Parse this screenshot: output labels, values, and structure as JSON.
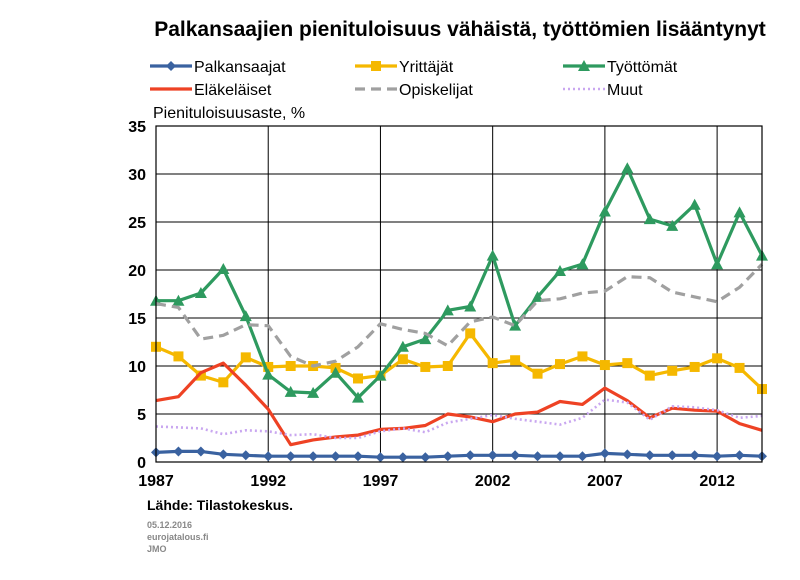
{
  "chart_data": {
    "type": "line",
    "title": "Palkansaajien pienituloisuus vähäistä, työttömien lisääntynyt",
    "ylabel": "Pienituloisuusaste, %",
    "xlabel": "",
    "xlim": [
      1987,
      2014
    ],
    "ylim": [
      0,
      35
    ],
    "yticks": [
      "0",
      "5",
      "10",
      "15",
      "20",
      "25",
      "30",
      "35"
    ],
    "xticks": [
      "1987",
      "1992",
      "1997",
      "2002",
      "2007",
      "2012"
    ],
    "x": [
      1987,
      1988,
      1989,
      1990,
      1991,
      1992,
      1993,
      1994,
      1995,
      1996,
      1997,
      1998,
      1999,
      2000,
      2001,
      2002,
      2003,
      2004,
      2005,
      2006,
      2007,
      2008,
      2009,
      2010,
      2011,
      2012,
      2013,
      2014
    ],
    "grid": true,
    "legend_position": "top",
    "series": [
      {
        "name": "Palkansaajat",
        "color": "#3a62a0",
        "marker": "diamond",
        "dash": "solid",
        "values": [
          1.0,
          1.1,
          1.1,
          0.8,
          0.7,
          0.6,
          0.6,
          0.6,
          0.6,
          0.6,
          0.5,
          0.5,
          0.5,
          0.6,
          0.7,
          0.7,
          0.7,
          0.6,
          0.6,
          0.6,
          0.9,
          0.8,
          0.7,
          0.7,
          0.7,
          0.6,
          0.7,
          0.6
        ]
      },
      {
        "name": "Yrittäjät",
        "color": "#f5b800",
        "marker": "square",
        "dash": "solid",
        "values": [
          12.0,
          11.0,
          9.0,
          8.3,
          10.9,
          9.9,
          10.0,
          10.0,
          9.8,
          8.7,
          9.0,
          10.7,
          9.9,
          10.0,
          13.4,
          10.3,
          10.6,
          9.2,
          10.2,
          11.0,
          10.1,
          10.3,
          9.0,
          9.5,
          9.9,
          10.8,
          9.8,
          7.6
        ]
      },
      {
        "name": "Työttömät",
        "color": "#2e9a5f",
        "marker": "triangle",
        "dash": "solid",
        "values": [
          16.8,
          16.8,
          17.6,
          20.1,
          15.2,
          9.1,
          7.3,
          7.2,
          9.3,
          6.7,
          9.0,
          12.0,
          12.8,
          15.8,
          16.2,
          21.5,
          14.2,
          17.2,
          19.9,
          20.6,
          26.1,
          30.6,
          25.3,
          24.6,
          26.8,
          20.6,
          26.0,
          21.5
        ]
      },
      {
        "name": "Eläkeläiset",
        "color": "#ee4224",
        "marker": "none",
        "dash": "solid",
        "values": [
          6.4,
          6.8,
          9.3,
          10.3,
          8.0,
          5.5,
          1.8,
          2.3,
          2.6,
          2.8,
          3.4,
          3.5,
          3.8,
          5.0,
          4.7,
          4.2,
          5.0,
          5.2,
          6.3,
          6.0,
          7.7,
          6.4,
          4.6,
          5.6,
          5.4,
          5.3,
          4.0,
          3.3
        ]
      },
      {
        "name": "Opiskelijat",
        "color": "#a0a0a0",
        "marker": "none",
        "dash": "dashed",
        "values": [
          16.5,
          16.1,
          12.8,
          13.2,
          14.3,
          14.2,
          11.0,
          10.0,
          10.5,
          12.0,
          14.4,
          13.8,
          13.4,
          12.1,
          14.6,
          15.1,
          14.2,
          16.8,
          17.0,
          17.6,
          17.8,
          19.3,
          19.2,
          17.7,
          17.2,
          16.7,
          18.2,
          20.6
        ]
      },
      {
        "name": "Muut",
        "color": "#c9a7f0",
        "marker": "none",
        "dash": "dotted",
        "values": [
          3.7,
          3.6,
          3.5,
          2.9,
          3.3,
          3.2,
          2.8,
          2.9,
          2.5,
          2.5,
          3.2,
          3.5,
          3.1,
          4.1,
          4.5,
          4.9,
          4.5,
          4.2,
          3.9,
          4.6,
          6.5,
          6.2,
          4.4,
          5.8,
          5.7,
          5.4,
          4.6,
          4.8
        ]
      }
    ]
  },
  "source": "Lähde: Tilastokeskus.",
  "date": "05.12.2016",
  "site": "eurojatalous.fi",
  "author": "JMO"
}
